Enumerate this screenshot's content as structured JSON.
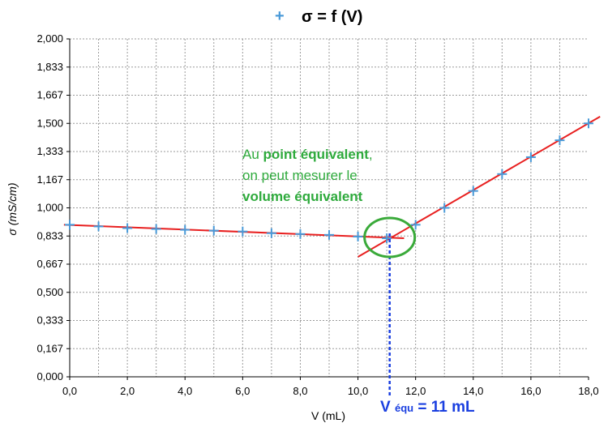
{
  "chart_data": {
    "type": "scatter",
    "title": "σ = f (V)",
    "legend_marker": "+",
    "xlabel": "V (mL)",
    "ylabel": "σ (mS/cm)",
    "xlim": [
      0,
      18
    ],
    "ylim": [
      0,
      2
    ],
    "x_ticks": [
      "0,0",
      "2,0",
      "4,0",
      "6,0",
      "8,0",
      "10,0",
      "12,0",
      "14,0",
      "16,0",
      "18,0"
    ],
    "y_ticks": [
      "0,000",
      "0,167",
      "0,333",
      "0,500",
      "0,667",
      "0,833",
      "1,000",
      "1,167",
      "1,333",
      "1,500",
      "1,667",
      "1,833",
      "2,000"
    ],
    "grid": true,
    "series": [
      {
        "marker": "+",
        "color": "#4a9ad8",
        "x": [
          0,
          1,
          2,
          3,
          4,
          5,
          6,
          7,
          8,
          9,
          10,
          11,
          12,
          13,
          14,
          15,
          16,
          17,
          18
        ],
        "y": [
          0.9,
          0.89,
          0.88,
          0.875,
          0.87,
          0.865,
          0.86,
          0.85,
          0.845,
          0.84,
          0.83,
          0.82,
          0.9,
          1.0,
          1.1,
          1.2,
          1.3,
          1.4,
          1.5
        ]
      }
    ],
    "fit_lines": [
      {
        "color": "#e82020",
        "x": [
          -0.2,
          11.6
        ],
        "y": [
          0.9,
          0.82
        ]
      },
      {
        "color": "#e82020",
        "x": [
          10.0,
          18.4
        ],
        "y": [
          0.71,
          1.54
        ]
      }
    ],
    "equivalence": {
      "x": 11.1,
      "y": 0.83,
      "line_color": "#1a3fe0",
      "circle_color": "#3aaa3a"
    }
  },
  "annotation": {
    "line1_prefix": "Au ",
    "line1_bold": "point équivalent",
    "line1_suffix": ",",
    "line2": "on peut mesurer le",
    "line3_bold": "volume équivalent"
  },
  "vequ": {
    "main": "V",
    "sub": "équ",
    "rest": " = 11 mL"
  }
}
